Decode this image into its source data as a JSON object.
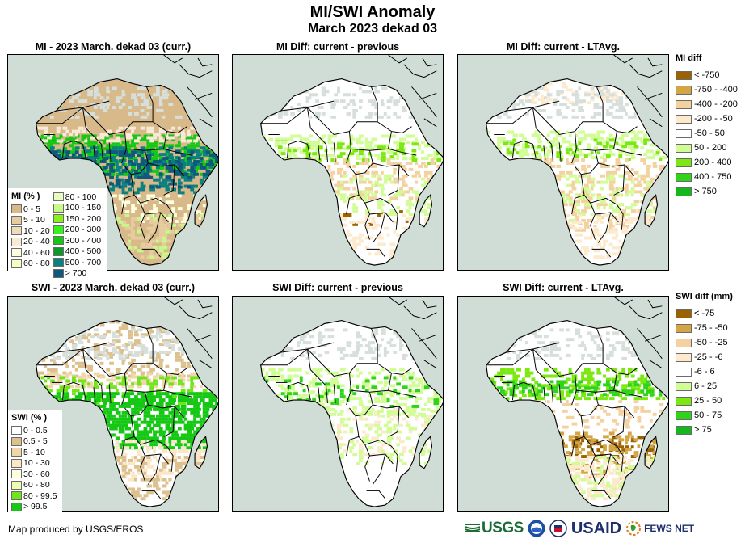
{
  "title": "MI/SWI Anomaly",
  "subtitle": "March 2023 dekad 03",
  "panels": [
    {
      "title": "MI - 2023 March. dekad 03 (curr.)",
      "variable": "MI",
      "type": "current"
    },
    {
      "title": "MI Diff: current - previous",
      "variable": "MI",
      "type": "diff-previous"
    },
    {
      "title": "MI Diff: current - LTAvg.",
      "variable": "MI",
      "type": "diff-ltavg"
    },
    {
      "title": "SWI - 2023 March. dekad 03 (curr.)",
      "variable": "SWI",
      "type": "current"
    },
    {
      "title": "SWI Diff: current - previous",
      "variable": "SWI",
      "type": "diff-previous"
    },
    {
      "title": "SWI Diff: current - LTAvg.",
      "variable": "SWI",
      "type": "diff-ltavg"
    }
  ],
  "legends": {
    "mi_current": {
      "title": "MI (% )",
      "classes": [
        {
          "label": "0 - 5",
          "color": "#d7b98a"
        },
        {
          "label": "5 - 10",
          "color": "#e6cc9f"
        },
        {
          "label": "10 - 20",
          "color": "#f0dcbb"
        },
        {
          "label": "20 - 40",
          "color": "#f8ead6"
        },
        {
          "label": "40 - 60",
          "color": "#fefee0"
        },
        {
          "label": "60 - 80",
          "color": "#f4fdc2"
        },
        {
          "label": "80 - 100",
          "color": "#e6fcc0"
        },
        {
          "label": "100 - 150",
          "color": "#c8f78a"
        },
        {
          "label": "150 - 200",
          "color": "#88f01a"
        },
        {
          "label": "200 - 300",
          "color": "#38f01c"
        },
        {
          "label": "300 - 400",
          "color": "#14c814"
        },
        {
          "label": "400 - 500",
          "color": "#0a9a28"
        },
        {
          "label": "500 - 700",
          "color": "#0a8080"
        },
        {
          "label": "> 700",
          "color": "#11587c"
        }
      ]
    },
    "swi_current": {
      "title": "SWI (% )",
      "classes": [
        {
          "label": "0 - 0.5",
          "color": "#ffffff"
        },
        {
          "label": "0.5 - 5",
          "color": "#dcc08e"
        },
        {
          "label": "5 - 10",
          "color": "#f0d6a8"
        },
        {
          "label": "10 - 30",
          "color": "#fde6c8"
        },
        {
          "label": "30 - 60",
          "color": "#fefee0"
        },
        {
          "label": "60 - 80",
          "color": "#eefcb4"
        },
        {
          "label": "80 - 99.5",
          "color": "#6ee61a"
        },
        {
          "label": "> 99.5",
          "color": "#14c814"
        }
      ]
    },
    "mi_diff": {
      "title": "MI diff",
      "classes": [
        {
          "label": "< -750",
          "color": "#9a6200"
        },
        {
          "label": "-750 - -400",
          "color": "#d4a544"
        },
        {
          "label": "-400 - -200",
          "color": "#f3d2a0"
        },
        {
          "label": "-200 - -50",
          "color": "#fdeacd"
        },
        {
          "label": "-50 - 50",
          "color": "#ffffff"
        },
        {
          "label": "50 - 200",
          "color": "#d2fc96"
        },
        {
          "label": "200 - 400",
          "color": "#7ce812"
        },
        {
          "label": "400 - 750",
          "color": "#2fd41a"
        },
        {
          "label": "> 750",
          "color": "#14b81c"
        }
      ]
    },
    "swi_diff": {
      "title": "SWI diff (mm)",
      "classes": [
        {
          "label": "< -75",
          "color": "#9a6200"
        },
        {
          "label": "-75 - -50",
          "color": "#d4a544"
        },
        {
          "label": "-50 - -25",
          "color": "#f3d2a0"
        },
        {
          "label": "-25 - -6",
          "color": "#fdeacd"
        },
        {
          "label": "-6 - 6",
          "color": "#ffffff"
        },
        {
          "label": "6 - 25",
          "color": "#d2fc96"
        },
        {
          "label": "25 - 50",
          "color": "#7ce812"
        },
        {
          "label": "50 - 75",
          "color": "#2fd41a"
        },
        {
          "label": "> 75",
          "color": "#14b81c"
        }
      ]
    }
  },
  "footer": {
    "credit": "Map produced by USGS/EROS",
    "logos": {
      "usgs": "USGS",
      "usgs_tagline": "science for a changing world",
      "usaid": "USAID",
      "usaid_tagline": "FROM THE AMERICAN PEOPLE",
      "fews": "FEWS NET"
    }
  },
  "colors": {
    "ocean": "#d0ddd6",
    "nodata": "#d6dfdb",
    "border": "#000000"
  }
}
